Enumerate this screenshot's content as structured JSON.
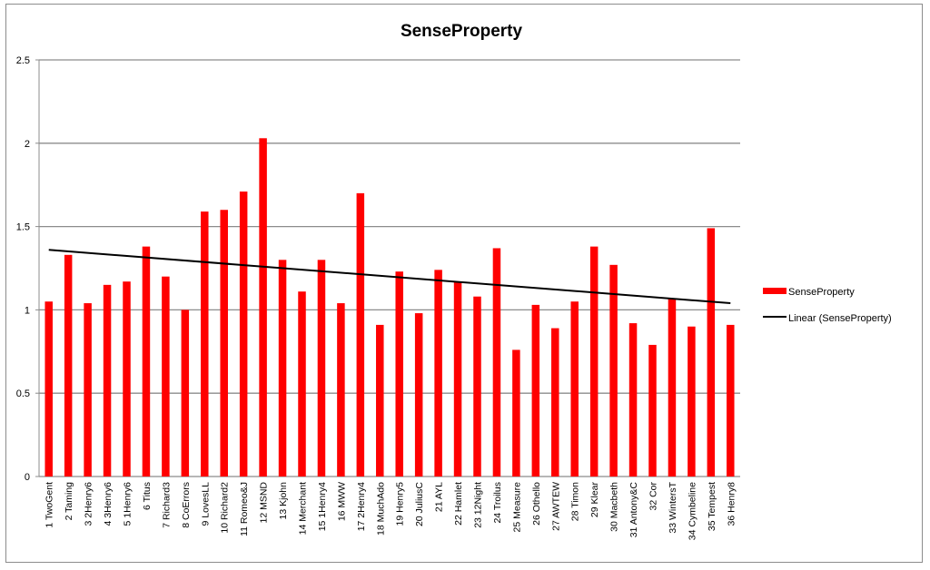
{
  "chart_data": {
    "type": "bar",
    "title": "SenseProperty",
    "xlabel": "",
    "ylabel": "",
    "ylim": [
      0,
      2.5
    ],
    "yticks": [
      "0",
      "0.5",
      "1",
      "1.5",
      "2",
      "2.5"
    ],
    "ytick_values": [
      0,
      0.5,
      1,
      1.5,
      2,
      2.5
    ],
    "grid": true,
    "legend_position": "right",
    "categories": [
      "1 TwoGent",
      "2 Taming",
      "3 2Henry6",
      "4 3Henry6",
      "5 1Henry6",
      "6 Titus",
      "7 Richard3",
      "8 CoErrors",
      "9 LovesLL",
      "10 Richard2",
      "11 Romeo&J",
      "12 MSND",
      "13 Kjohn",
      "14 Merchant",
      "15 1Henry4",
      "16 MWW",
      "17 2Henry4",
      "18 MuchAdo",
      "19 Henry5",
      "20 JuliusC",
      "21 AYL",
      "22 Hamlet",
      "23 12Night",
      "24 Troilus",
      "25 Measure",
      "26 Othello",
      "27 AWTEW",
      "28 Timon",
      "29 Klear",
      "30 Macbeth",
      "31 Antony&C",
      "32 Cor",
      "33 WintersT",
      "34 Cymbeline",
      "35 Tempest",
      "36 Henry8"
    ],
    "series": [
      {
        "name": "SenseProperty",
        "color": "#ff0000",
        "values": [
          1.05,
          1.33,
          1.04,
          1.15,
          1.17,
          1.38,
          1.2,
          1.0,
          1.59,
          1.6,
          1.71,
          2.03,
          1.3,
          1.11,
          1.3,
          1.04,
          1.7,
          0.91,
          1.23,
          0.98,
          1.24,
          1.17,
          1.08,
          1.37,
          0.76,
          1.03,
          0.89,
          1.05,
          1.38,
          1.27,
          0.92,
          0.79,
          1.07,
          0.9,
          1.49,
          0.91
        ]
      }
    ],
    "trendline": {
      "name": "Linear (SenseProperty)",
      "type": "linear",
      "color": "#000000",
      "start": 1.36,
      "end": 1.04
    }
  }
}
